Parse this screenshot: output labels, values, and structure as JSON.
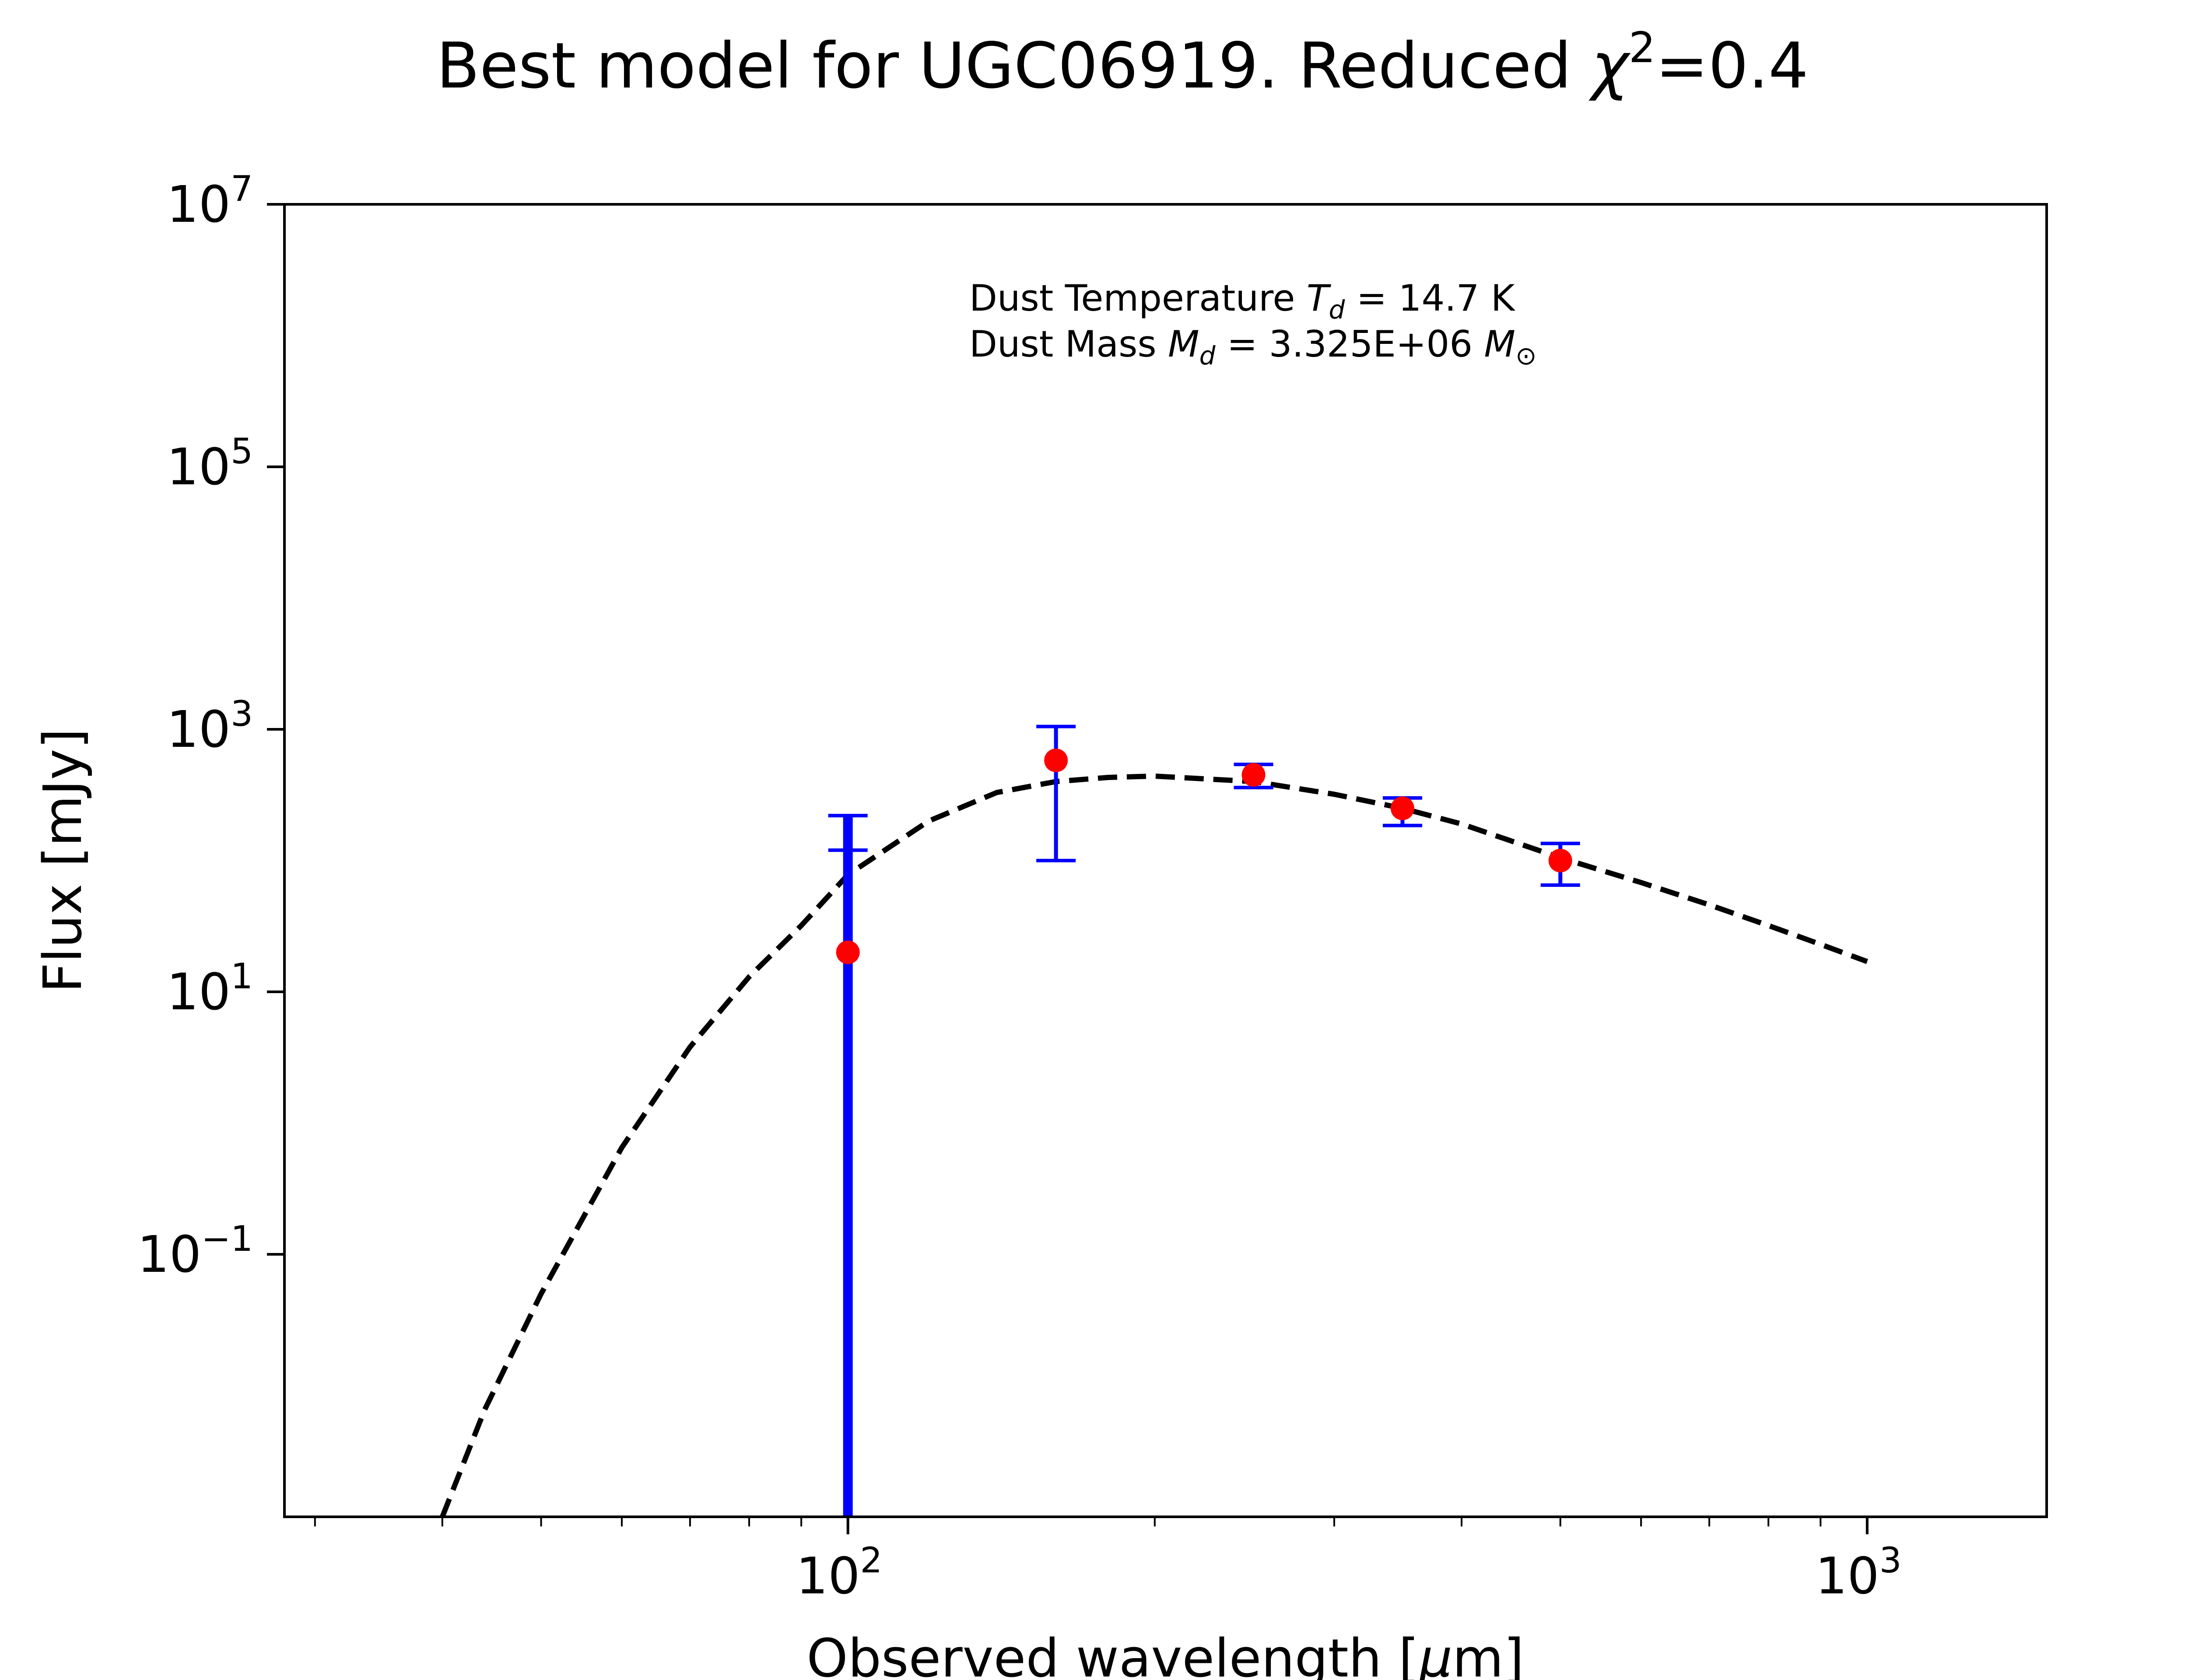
{
  "chart_data": {
    "type": "scatter",
    "title_prefix": "Best model for UGC06919. Reduced ",
    "title_chi": "χ",
    "title_exp": "2",
    "title_suffix": "=0.4",
    "xlabel_prefix": "Observed wavelength [",
    "xlabel_mu": "μ",
    "xlabel_suffix": "m]",
    "ylabel": "Flux [mJy]",
    "x_scale": "log",
    "y_scale": "log",
    "xlim": [
      28,
      1500
    ],
    "ylim": [
      0.001,
      10000000
    ],
    "x_ticks": [
      {
        "value": 100,
        "base": "10",
        "exp": "2"
      },
      {
        "value": 1000,
        "base": "10",
        "exp": "3"
      }
    ],
    "y_ticks": [
      {
        "value": 0.1,
        "base": "10",
        "exp": "−1"
      },
      {
        "value": 10,
        "base": "10",
        "exp": "1"
      },
      {
        "value": 1000,
        "base": "10",
        "exp": "3"
      },
      {
        "value": 100000,
        "base": "10",
        "exp": "5"
      },
      {
        "value": 10000000,
        "base": "10",
        "exp": "7"
      }
    ],
    "grid": false,
    "annotation": {
      "line1_prefix": "Dust Temperature ",
      "line1_var": "T",
      "line1_sub": "d",
      "line1_suffix": " = 14.7 K",
      "line2_prefix": "Dust Mass ",
      "line2_var": "M",
      "line2_sub": "d",
      "line2_mid": " = 3.325E+06 ",
      "line2_unit": "M",
      "line2_unit_sub": "⊙"
    },
    "observations": {
      "marker_color": "#ff0000",
      "errorbar_color": "#0000ff",
      "points": [
        {
          "x": 100,
          "y": 20,
          "yerr_low": 0.001,
          "yerr_high": 220,
          "cap_low": 120
        },
        {
          "x": 160,
          "y": 580,
          "yerr_low": 100,
          "yerr_high": 1050
        },
        {
          "x": 250,
          "y": 450,
          "yerr_low": 360,
          "yerr_high": 540
        },
        {
          "x": 350,
          "y": 250,
          "yerr_low": 185,
          "yerr_high": 300
        },
        {
          "x": 500,
          "y": 100,
          "yerr_low": 65,
          "yerr_high": 135
        }
      ]
    },
    "model": {
      "style": "dashed",
      "color": "#000000",
      "points": [
        [
          40,
          0.001
        ],
        [
          44,
          0.0065
        ],
        [
          50,
          0.05
        ],
        [
          60,
          0.65
        ],
        [
          70,
          3.8
        ],
        [
          80,
          13
        ],
        [
          90,
          32
        ],
        [
          100,
          78
        ],
        [
          120,
          200
        ],
        [
          140,
          330
        ],
        [
          160,
          400
        ],
        [
          180,
          430
        ],
        [
          200,
          440
        ],
        [
          250,
          400
        ],
        [
          300,
          320
        ],
        [
          350,
          250
        ],
        [
          400,
          190
        ],
        [
          500,
          105
        ],
        [
          600,
          68
        ],
        [
          700,
          46
        ],
        [
          800,
          32
        ],
        [
          900,
          23
        ],
        [
          1000,
          17
        ]
      ]
    }
  }
}
